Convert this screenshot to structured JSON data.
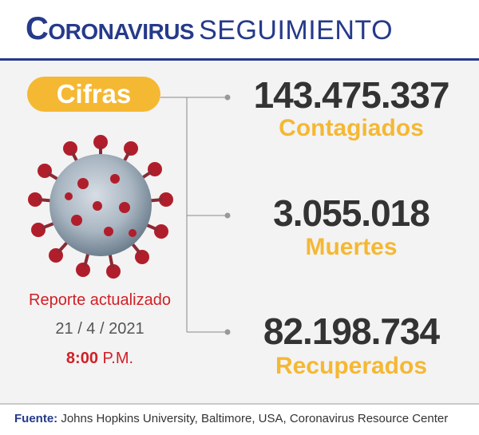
{
  "header": {
    "title_bold": "Coronavirus",
    "title_light": "SEGUIMIENTO"
  },
  "badge": {
    "label": "Cifras"
  },
  "stats": [
    {
      "value": "143.475.337",
      "label": "Contagiados"
    },
    {
      "value": "3.055.018",
      "label": "Muertes"
    },
    {
      "value": "82.198.734",
      "label": "Recuperados"
    }
  ],
  "report": {
    "label": "Reporte actualizado",
    "date": "21 / 4 / 2021",
    "time_bold": "8:00",
    "time_suffix": "P.M."
  },
  "footer": {
    "source_label": "Fuente:",
    "source_text": "Johns Hopkins University, Baltimore, USA, Coronavirus Resource Center"
  },
  "colors": {
    "brand_blue": "#253a8a",
    "accent_yellow": "#f5b833",
    "accent_red": "#d11f26",
    "value_dark": "#333333"
  },
  "icons": {
    "virus": "coronavirus-icon"
  }
}
